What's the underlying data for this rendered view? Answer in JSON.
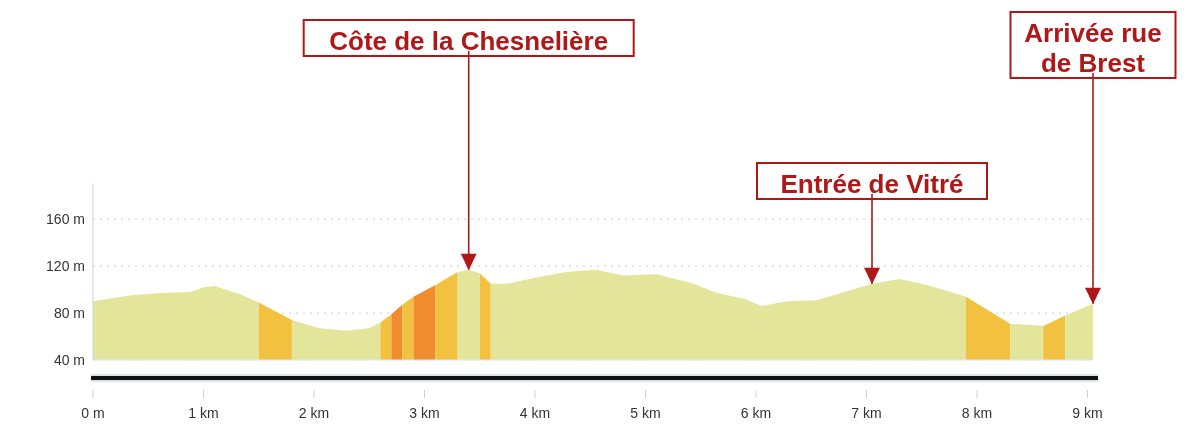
{
  "chart_data": {
    "type": "area",
    "annotations": [
      {
        "text": "Côte de la Chesnelière",
        "x": 3.4,
        "y": 117
      },
      {
        "text": "Entrée de Vitré",
        "x": 7.05,
        "y": 105
      },
      "Arrivée rue de Brest"
    ],
    "series": [
      {
        "color": "#e3e59a",
        "x": [
          0,
          0.33,
          0.6,
          0.88,
          1.0,
          1.1,
          1.33,
          1.5
        ],
        "values": [
          90,
          95,
          97,
          98,
          102,
          103,
          96,
          89
        ]
      },
      {
        "color": "#f2c13f",
        "x": [
          1.5,
          1.8
        ],
        "values": [
          89,
          74
        ]
      },
      {
        "color": "#e3e59a",
        "x": [
          1.8,
          2.05,
          2.3,
          2.5,
          2.6
        ],
        "values": [
          74,
          67,
          65,
          67,
          72
        ]
      },
      {
        "color": "#f2c13f",
        "x": [
          2.6,
          2.7
        ],
        "values": [
          72,
          79
        ]
      },
      {
        "color": "#f08c2e",
        "x": [
          2.7,
          2.8
        ],
        "values": [
          79,
          87
        ]
      },
      {
        "color": "#f2c13f",
        "x": [
          2.8,
          2.9
        ],
        "values": [
          87,
          94
        ]
      },
      {
        "color": "#f08c2e",
        "x": [
          2.9,
          3.1
        ],
        "values": [
          94,
          104
        ]
      },
      {
        "color": "#f2c13f",
        "x": [
          3.1,
          3.3
        ],
        "values": [
          104,
          115
        ]
      },
      {
        "color": "#e3e59a",
        "x": [
          3.3,
          3.4,
          3.5
        ],
        "values": [
          115,
          117,
          114
        ]
      },
      {
        "color": "#f2c13f",
        "x": [
          3.5,
          3.6
        ],
        "values": [
          114,
          105
        ]
      },
      {
        "color": "#e3e59a",
        "x": [
          3.6,
          3.75,
          4.0,
          4.28,
          4.55,
          4.8,
          5.1,
          5.4,
          5.65,
          5.9,
          6.05,
          6.28,
          6.55,
          6.8,
          7.05,
          7.3,
          7.55,
          7.9
        ],
        "values": [
          105,
          105,
          110,
          115,
          117,
          112,
          113,
          106,
          97,
          92,
          86,
          90,
          91,
          98,
          105,
          109,
          104,
          94
        ]
      },
      {
        "color": "#f2c13f",
        "x": [
          7.9,
          8.3
        ],
        "values": [
          94,
          71
        ]
      },
      {
        "color": "#e3e59a",
        "x": [
          8.3,
          8.6
        ],
        "values": [
          71,
          69
        ]
      },
      {
        "color": "#f2c13f",
        "x": [
          8.6,
          8.8
        ],
        "values": [
          69,
          78
        ]
      },
      {
        "color": "#e3e59a",
        "x": [
          8.8,
          9.05
        ],
        "values": [
          78,
          88
        ]
      }
    ],
    "xlim": [
      0,
      9.05
    ],
    "xticks": [
      {
        "value": 0,
        "label": "0 m"
      },
      {
        "value": 1,
        "label": "1 km"
      },
      {
        "value": 2,
        "label": "2 km"
      },
      {
        "value": 3,
        "label": "3 km"
      },
      {
        "value": 4,
        "label": "4 km"
      },
      {
        "value": 5,
        "label": "5 km"
      },
      {
        "value": 6,
        "label": "6 km"
      },
      {
        "value": 7,
        "label": "7 km"
      },
      {
        "value": 8,
        "label": "8 km"
      },
      {
        "value": 9,
        "label": "9 km"
      }
    ],
    "ylim": [
      40,
      190
    ],
    "yticks": [
      {
        "value": 40,
        "label": "40 m"
      },
      {
        "value": 80,
        "label": "80 m"
      },
      {
        "value": 120,
        "label": "120 m"
      },
      {
        "value": 160,
        "label": "160 m"
      }
    ],
    "grid": "y",
    "legend": false
  }
}
